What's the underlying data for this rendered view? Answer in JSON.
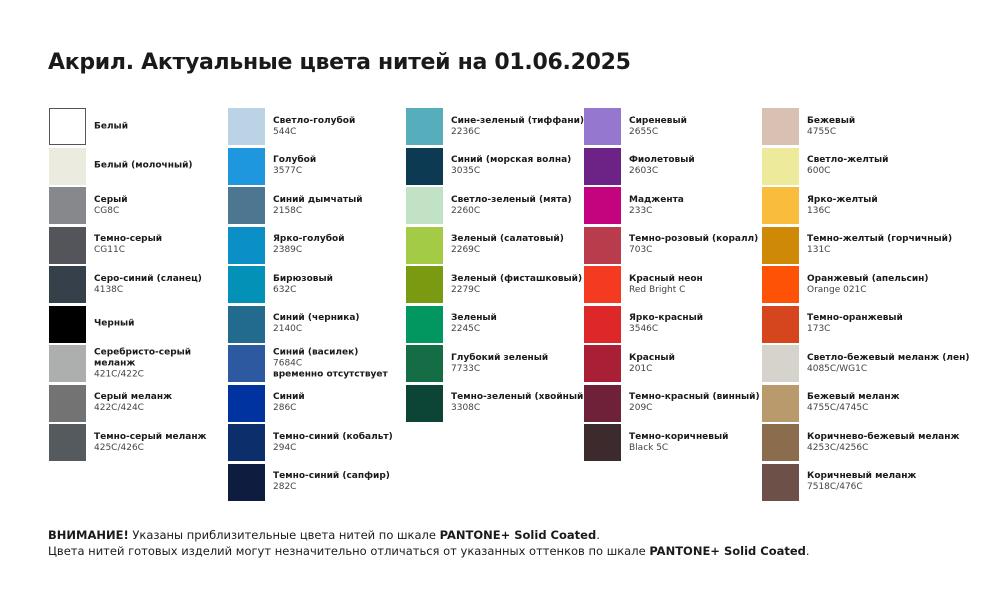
{
  "title": "Акрил. Актуальные цвета нитей на 01.06.2025",
  "columns": [
    [
      {
        "name": "Белый",
        "code": "",
        "color": "#ffffff",
        "border": true
      },
      {
        "name": "Белый (молочный)",
        "code": "",
        "color": "#ebebe0"
      },
      {
        "name": "Серый",
        "code": "CG8C",
        "color": "#87888c"
      },
      {
        "name": "Темно-серый",
        "code": "CG11C",
        "color": "#54555a"
      },
      {
        "name": "Серо-синий (сланец)",
        "code": "4138C",
        "color": "#36404a"
      },
      {
        "name": "Черный",
        "code": "",
        "color": "#000000"
      },
      {
        "name": "Серебристо-серый меланж",
        "code": "421C/422C",
        "color": "#adaeae",
        "wrap": [
          "Серебристо-серый",
          "меланж"
        ]
      },
      {
        "name": "Серый меланж",
        "code": "422C/424C",
        "color": "#737374"
      },
      {
        "name": "Темно-серый меланж",
        "code": "425C/426C",
        "color": "#545a5e"
      }
    ],
    [
      {
        "name": "Светло-голубой",
        "code": "544C",
        "color": "#bcd3e6"
      },
      {
        "name": "Голубой",
        "code": "3577C",
        "color": "#1f97de"
      },
      {
        "name": "Синий дымчатый",
        "code": "2158C",
        "color": "#4d7690"
      },
      {
        "name": "Ярко-голубой",
        "code": "2389C",
        "color": "#0a8fc7"
      },
      {
        "name": "Бирюзовый",
        "code": "632C",
        "color": "#0491b8"
      },
      {
        "name": "Синий (черника)",
        "code": "2140C",
        "color": "#226a8e"
      },
      {
        "name": "Синий (василек)",
        "code": "7684C",
        "color": "#2c599f",
        "note": "временно отсутствует"
      },
      {
        "name": "Синий",
        "code": "286C",
        "color": "#0032a0"
      },
      {
        "name": "Темно-синий (кобальт)",
        "code": "294C",
        "color": "#0c2f6b"
      },
      {
        "name": "Темно-синий (сапфир)",
        "code": "282C",
        "color": "#0d1c3f"
      }
    ],
    [
      {
        "name": "Сине-зеленый (тиффани)",
        "code": "2236C",
        "color": "#56adbb"
      },
      {
        "name": "Синий (морская волна)",
        "code": "3035C",
        "color": "#0c3a52"
      },
      {
        "name": "Светло-зеленый (мята)",
        "code": "2260C",
        "color": "#c2e2c6"
      },
      {
        "name": "Зеленый (салатовый)",
        "code": "2269C",
        "color": "#a3cb45"
      },
      {
        "name": "Зеленый (фисташковый)",
        "code": "2279C",
        "color": "#7a9a11"
      },
      {
        "name": "Зеленый",
        "code": "2245C",
        "color": "#029660"
      },
      {
        "name": "Глубокий зеленый",
        "code": "7733C",
        "color": "#146d45"
      },
      {
        "name": "Темно-зеленый (хвойный)",
        "code": "3308C",
        "color": "#0c4435"
      }
    ],
    [
      {
        "name": "Сиреневый",
        "code": "2655C",
        "color": "#9677cf"
      },
      {
        "name": "Фиолетовый",
        "code": "2603C",
        "color": "#6c2385"
      },
      {
        "name": "Маджента",
        "code": "233C",
        "color": "#c4037f"
      },
      {
        "name": "Темно-розовый (коралл)",
        "code": "703C",
        "color": "#b93c4d"
      },
      {
        "name": "Красный неон",
        "code": "Red Bright C",
        "color": "#f43a21"
      },
      {
        "name": "Ярко-красный",
        "code": "3546C",
        "color": "#de2728"
      },
      {
        "name": "Красный",
        "code": "201C",
        "color": "#a81f36"
      },
      {
        "name": "Темно-красный (винный)",
        "code": "209C",
        "color": "#6e2138"
      },
      {
        "name": "Темно-коричневый",
        "code": "Black 5C",
        "color": "#3c2a2d"
      }
    ],
    [
      {
        "name": "Бежевый",
        "code": "4755C",
        "color": "#d8c0b3"
      },
      {
        "name": "Светло-желтый",
        "code": "600C",
        "color": "#eeea9c"
      },
      {
        "name": "Ярко-желтый",
        "code": "136C",
        "color": "#f9bc3c"
      },
      {
        "name": "Темно-желтый (горчичный)",
        "code": "131C",
        "color": "#ce8a06"
      },
      {
        "name": "Оранжевый (апельсин)",
        "code": "Orange 021C",
        "color": "#fe5206"
      },
      {
        "name": "Темно-оранжевый",
        "code": "173C",
        "color": "#d6461e"
      },
      {
        "name": "Светло-бежевый меланж (лен)",
        "code": "4085C/WG1C",
        "color": "#d6d3cc"
      },
      {
        "name": "Бежевый меланж",
        "code": "4755C/4745C",
        "color": "#b99a6c"
      },
      {
        "name": "Коричнево-бежевый меланж",
        "code": "4253C/4256C",
        "color": "#8b6c4c"
      },
      {
        "name": "Коричневый меланж",
        "code": "7518C/476C",
        "color": "#6d5148"
      }
    ]
  ],
  "footer": {
    "line1_bold": "ВНИМАНИЕ!",
    "line1_text": " Указаны приблизительные цвета нитей по шкале ",
    "line1_scale": "PANTONE+ Solid Coated",
    "line1_end": ".",
    "line2_text": "Цвета нитей готовых изделий могут незначительно отличаться от указанных оттенков по шкале ",
    "line2_scale": "PANTONE+ Solid Coated",
    "line2_end": "."
  }
}
